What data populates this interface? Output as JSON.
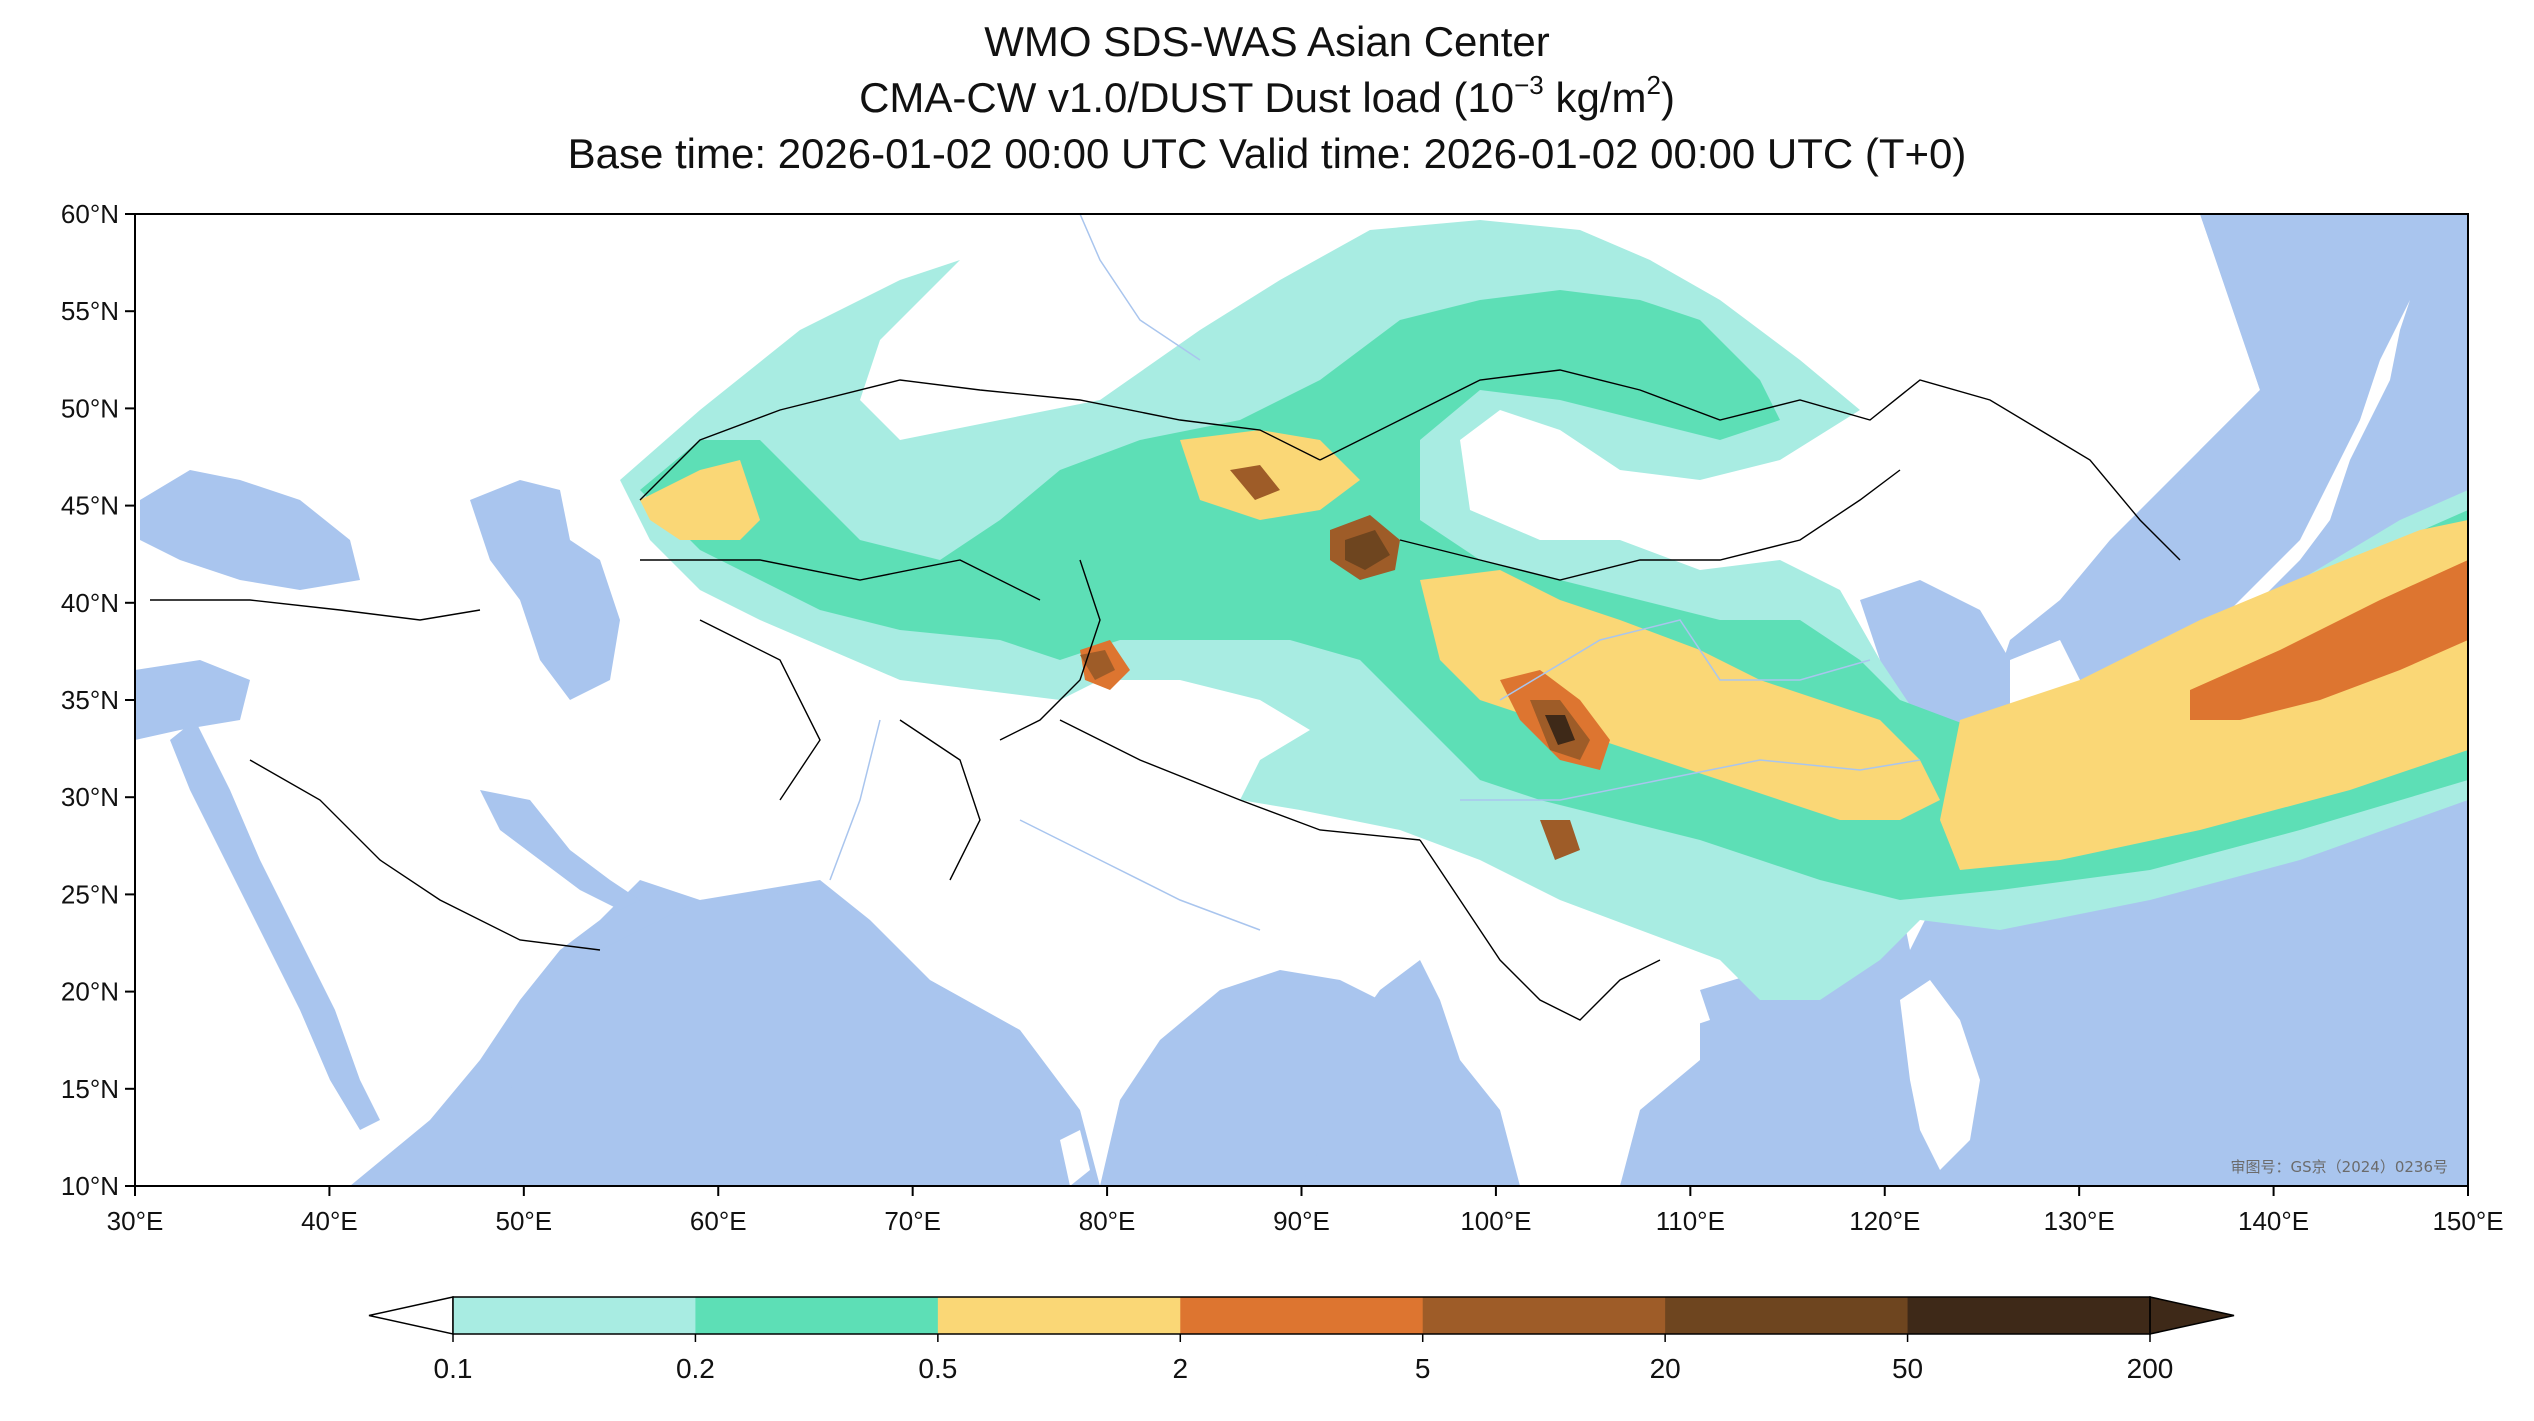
{
  "title": {
    "line1": "WMO SDS-WAS Asian Center",
    "line2_prefix": "CMA-CW v1.0/DUST Dust load (10",
    "line2_exp": "−3",
    "line2_mid": " kg/m",
    "line2_exp2": "2",
    "line2_suffix": ")",
    "line3": "Base time: 2026-01-02 00:00 UTC Valid time: 2026-01-02 00:00 UTC (T+0)"
  },
  "map": {
    "lon_range": [
      30,
      150
    ],
    "lat_range": [
      10,
      60
    ],
    "lon_ticks": [
      "30°E",
      "40°E",
      "50°E",
      "60°E",
      "70°E",
      "80°E",
      "90°E",
      "100°E",
      "110°E",
      "120°E",
      "130°E",
      "140°E",
      "150°E"
    ],
    "lat_ticks": [
      "60°N",
      "55°N",
      "50°N",
      "45°N",
      "40°N",
      "35°N",
      "30°N",
      "25°N",
      "20°N",
      "15°N",
      "10°N"
    ],
    "ocean_color": "#a9c5ee",
    "land_color": "#ffffff",
    "border_color": "#000000",
    "river_color": "#a9c5ee",
    "watermark": "审图号：GS京（2024）0236号"
  },
  "colorbar": {
    "levels": [
      "0.1",
      "0.2",
      "0.5",
      "2",
      "5",
      "20",
      "50",
      "200"
    ],
    "colors": [
      "#a8ece2",
      "#5ddfb6",
      "#fad776",
      "#dd7530",
      "#9e5c28",
      "#6e451f",
      "#3e2918"
    ],
    "extend": "both"
  }
}
